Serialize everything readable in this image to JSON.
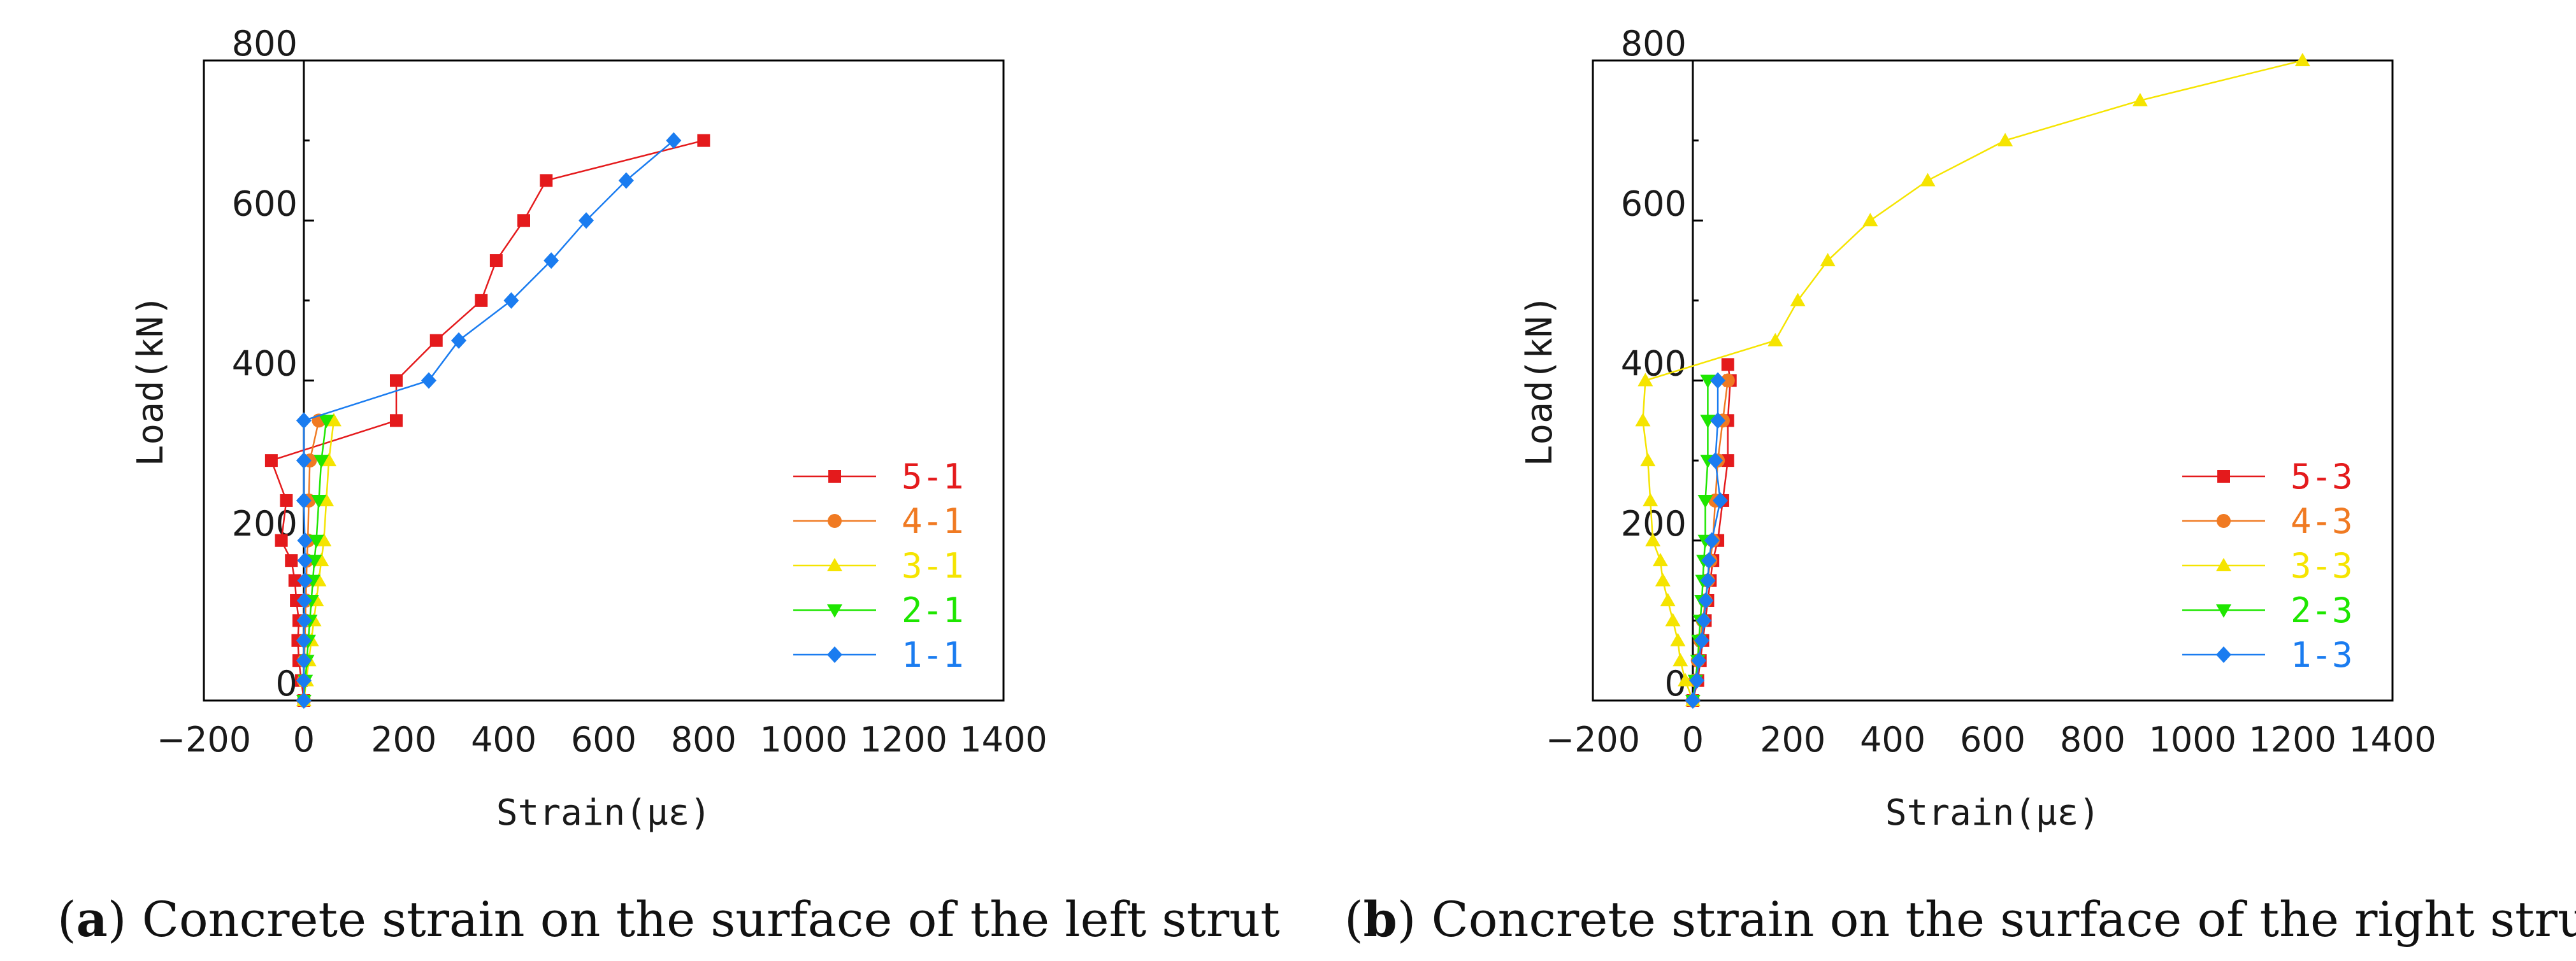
{
  "figure": {
    "captions": [
      {
        "letter": "a",
        "text": "Concrete strain on the surface of the left strut"
      },
      {
        "letter": "b",
        "text": "Concrete strain on the surface of the right strut"
      }
    ]
  },
  "chart_data": [
    {
      "type": "line",
      "title": "",
      "xlabel": "Strain(με)",
      "ylabel": "Load(kN)",
      "xlim": [
        -200,
        1400
      ],
      "ylim": [
        0,
        800
      ],
      "xticks": [
        -200,
        0,
        200,
        400,
        600,
        800,
        1000,
        1200,
        1400
      ],
      "yticks": [
        0,
        200,
        400,
        600,
        800
      ],
      "legend_position": "bottom-right",
      "series": [
        {
          "name": "5-1",
          "color": "#e41a1c",
          "marker": "square",
          "x": [
            0,
            -5,
            -10,
            -12,
            -10,
            -15,
            -18,
            -25,
            -45,
            -35,
            -65,
            185,
            185,
            265,
            355,
            385,
            440,
            485,
            800
          ],
          "y": [
            0,
            25,
            50,
            75,
            100,
            125,
            150,
            175,
            200,
            250,
            300,
            350,
            400,
            450,
            500,
            550,
            600,
            650,
            700
          ]
        },
        {
          "name": "4-1",
          "color": "#f07a22",
          "marker": "circle",
          "x": [
            0,
            0,
            1,
            2,
            3,
            4,
            5,
            6,
            8,
            10,
            12,
            30
          ],
          "y": [
            0,
            25,
            50,
            75,
            100,
            125,
            150,
            175,
            200,
            250,
            300,
            350
          ]
        },
        {
          "name": "3-1",
          "color": "#f5e400",
          "marker": "triangle-up",
          "x": [
            0,
            5,
            10,
            15,
            20,
            25,
            30,
            35,
            40,
            45,
            50,
            60
          ],
          "y": [
            0,
            25,
            50,
            75,
            100,
            125,
            150,
            175,
            200,
            250,
            300,
            350
          ]
        },
        {
          "name": "2-1",
          "color": "#1ee600",
          "marker": "triangle-down",
          "x": [
            0,
            3,
            6,
            9,
            12,
            15,
            18,
            21,
            25,
            30,
            35,
            45
          ],
          "y": [
            0,
            25,
            50,
            75,
            100,
            125,
            150,
            175,
            200,
            250,
            300,
            350
          ]
        },
        {
          "name": "1-1",
          "color": "#1a7cf0",
          "marker": "diamond",
          "x": [
            0,
            0,
            0,
            0,
            1,
            1,
            2,
            2,
            2,
            0,
            0,
            0,
            250,
            310,
            415,
            495,
            565,
            645,
            740
          ],
          "y": [
            0,
            25,
            50,
            75,
            100,
            125,
            150,
            175,
            200,
            250,
            300,
            350,
            400,
            450,
            500,
            550,
            600,
            650,
            700
          ]
        }
      ]
    },
    {
      "type": "line",
      "title": "",
      "xlabel": "Strain(με)",
      "ylabel": "Load(kN)",
      "xlim": [
        -200,
        1400
      ],
      "ylim": [
        0,
        800
      ],
      "xticks": [
        -200,
        0,
        200,
        400,
        600,
        800,
        1000,
        1200,
        1400
      ],
      "yticks": [
        0,
        200,
        400,
        600,
        800
      ],
      "legend_position": "bottom-right",
      "series": [
        {
          "name": "5-3",
          "color": "#e41a1c",
          "marker": "square",
          "x": [
            0,
            10,
            15,
            20,
            25,
            30,
            35,
            40,
            50,
            60,
            70,
            70,
            75,
            70
          ],
          "y": [
            0,
            25,
            50,
            75,
            100,
            125,
            150,
            175,
            200,
            250,
            300,
            350,
            400,
            420
          ]
        },
        {
          "name": "4-3",
          "color": "#f07a22",
          "marker": "circle",
          "x": [
            0,
            5,
            10,
            15,
            20,
            25,
            30,
            35,
            40,
            45,
            50,
            60,
            70
          ],
          "y": [
            0,
            25,
            50,
            75,
            100,
            125,
            150,
            175,
            200,
            250,
            300,
            350,
            400
          ]
        },
        {
          "name": "3-3",
          "color": "#f5e400",
          "marker": "triangle-up",
          "x": [
            0,
            -15,
            -25,
            -30,
            -40,
            -50,
            -60,
            -65,
            -80,
            -85,
            -90,
            -100,
            -95,
            165,
            210,
            270,
            355,
            470,
            625,
            895,
            1220
          ],
          "y": [
            0,
            25,
            50,
            75,
            100,
            125,
            150,
            175,
            200,
            250,
            300,
            350,
            400,
            450,
            500,
            550,
            600,
            650,
            700,
            750,
            800
          ]
        },
        {
          "name": "2-3",
          "color": "#1ee600",
          "marker": "triangle-down",
          "x": [
            0,
            5,
            10,
            12,
            15,
            18,
            20,
            22,
            25,
            25,
            30,
            30,
            30
          ],
          "y": [
            0,
            25,
            50,
            75,
            100,
            125,
            150,
            175,
            200,
            250,
            300,
            350,
            400
          ]
        },
        {
          "name": "1-3",
          "color": "#1a7cf0",
          "marker": "diamond",
          "x": [
            0,
            8,
            12,
            18,
            22,
            26,
            30,
            32,
            38,
            55,
            45,
            50,
            50
          ],
          "y": [
            0,
            25,
            50,
            75,
            100,
            125,
            150,
            175,
            200,
            250,
            300,
            350,
            400
          ]
        }
      ]
    }
  ]
}
